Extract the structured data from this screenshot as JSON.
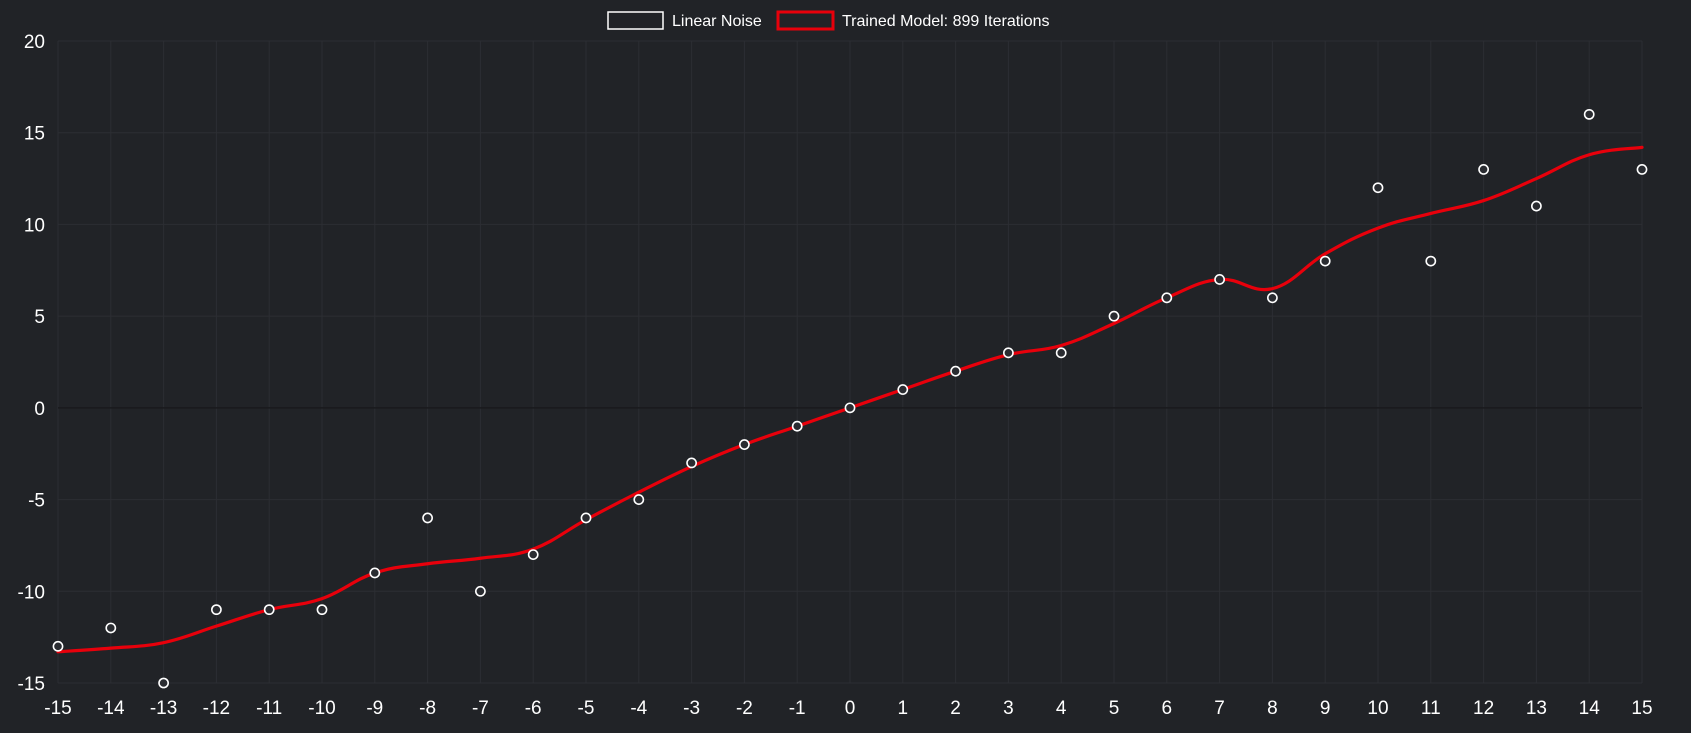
{
  "chart_data": {
    "type": "scatter",
    "xlim": [
      -15,
      15
    ],
    "ylim": [
      -15,
      20
    ],
    "x_ticks": [
      "-15",
      "-14",
      "-13",
      "-12",
      "-11",
      "-10",
      "-9",
      "-8",
      "-7",
      "-6",
      "-5",
      "-4",
      "-3",
      "-2",
      "-1",
      "0",
      "1",
      "2",
      "3",
      "4",
      "5",
      "6",
      "7",
      "8",
      "9",
      "10",
      "11",
      "12",
      "13",
      "14",
      "15"
    ],
    "y_ticks": [
      "20",
      "15",
      "10",
      "5",
      "0",
      "-5",
      "-10",
      "-15"
    ],
    "grid": true,
    "legend_position": "top-center",
    "series": [
      {
        "name": "Linear Noise",
        "kind": "scatter",
        "color": "#ffffff",
        "x": [
          -15,
          -14,
          -13,
          -12,
          -11,
          -10,
          -9,
          -8,
          -7,
          -6,
          -5,
          -4,
          -3,
          -2,
          -1,
          0,
          1,
          2,
          3,
          4,
          5,
          6,
          7,
          8,
          9,
          10,
          11,
          12,
          13,
          14,
          15
        ],
        "y": [
          -13,
          -12,
          -15,
          -11,
          -11,
          -11,
          -9,
          -6,
          -10,
          -8,
          -6,
          -5,
          -3,
          -2,
          -1,
          0,
          1,
          2,
          3,
          3,
          5,
          6,
          7,
          6,
          8,
          12,
          8,
          13,
          11,
          16,
          13
        ]
      },
      {
        "name": "Trained Model: 899 Iterations",
        "kind": "line",
        "color": "#e8000b",
        "x": [
          -15,
          -14,
          -13,
          -12,
          -11,
          -10,
          -9,
          -8,
          -7,
          -6,
          -5,
          -4,
          -3,
          -2,
          -1,
          0,
          1,
          2,
          3,
          4,
          5,
          6,
          7,
          8,
          9,
          10,
          11,
          12,
          13,
          14,
          15
        ],
        "y": [
          -13.3,
          -13.1,
          -12.8,
          -11.9,
          -11.0,
          -10.4,
          -9.0,
          -8.5,
          -8.2,
          -7.7,
          -6.1,
          -4.6,
          -3.2,
          -2.0,
          -1.0,
          0.0,
          1.0,
          2.0,
          2.9,
          3.4,
          4.6,
          6.0,
          7.0,
          6.5,
          8.4,
          9.8,
          10.6,
          11.3,
          12.5,
          13.8,
          14.2
        ]
      }
    ]
  }
}
